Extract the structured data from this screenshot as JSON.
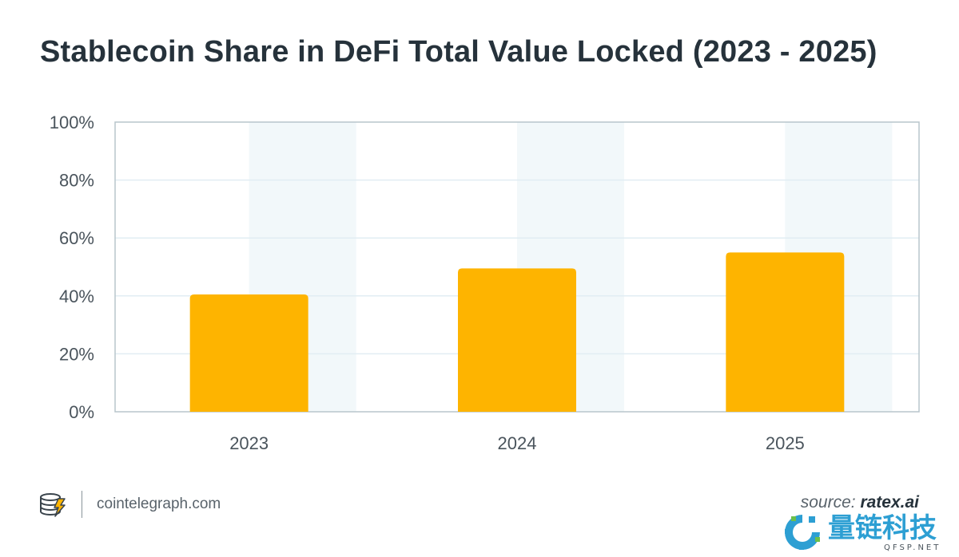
{
  "chart_data": {
    "type": "bar",
    "title": "Stablecoin Share in DeFi Total Value Locked (2023 - 2025)",
    "categories": [
      "2023",
      "2024",
      "2025"
    ],
    "values": [
      40.5,
      49.5,
      55
    ],
    "ylim": [
      0,
      100
    ],
    "yticks": [
      0,
      20,
      40,
      60,
      80,
      100
    ],
    "ytick_labels": [
      "0%",
      "20%",
      "40%",
      "60%",
      "80%",
      "100%"
    ],
    "xlabel": "",
    "ylabel": "",
    "grid": true,
    "bar_color": "#feb400",
    "band_color": "#f2f8fa",
    "grid_color": "#e1edf3",
    "axis_color": "#b8c5cc"
  },
  "footer": {
    "brand": "cointelegraph.com",
    "source_prefix": "source: ",
    "source_name": "ratex.ai"
  },
  "watermark": {
    "text_cn": "量链科技",
    "text_en": "QFSP.NET"
  }
}
